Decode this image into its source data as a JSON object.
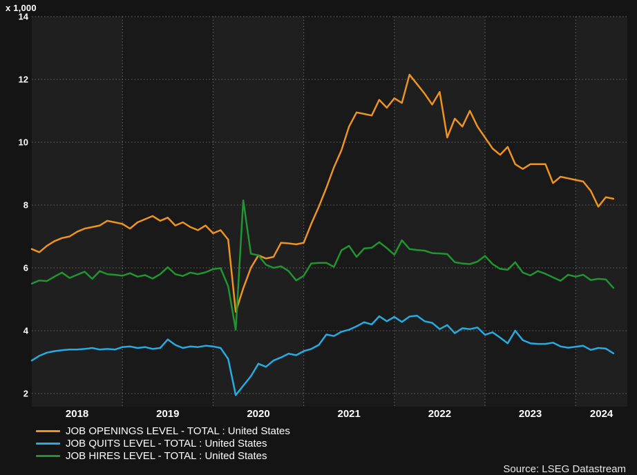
{
  "chart": {
    "scale_label": "x 1,000",
    "source": "Source: LSEG Datastream"
  },
  "legend": {
    "items": [
      {
        "label": "JOB OPENINGS LEVEL - TOTAL : United States",
        "color": "#ef9421"
      },
      {
        "label": "JOB QUITS LEVEL - TOTAL : United States",
        "color": "#27ace2"
      },
      {
        "label": "JOB HIRES LEVEL - TOTAL : United States",
        "color": "#1f9630"
      }
    ]
  },
  "chart_data": {
    "type": "line",
    "title": "",
    "xlabel": "",
    "ylabel": "x 1,000",
    "x_unit": "month",
    "x_start": "2018-01",
    "x_end": "2024-06",
    "x_tick_years": [
      "2018",
      "2019",
      "2020",
      "2021",
      "2022",
      "2023",
      "2024"
    ],
    "y_ticks": [
      2,
      4,
      6,
      8,
      10,
      12,
      14
    ],
    "ylim": [
      2,
      14
    ],
    "grid": "dotted",
    "grid_color": "#8a8a8a",
    "plot_band_light": "#1f1f1f",
    "plot_band_dark": "#191919",
    "legend_position": "bottom-left",
    "series": [
      {
        "name": "JOB OPENINGS LEVEL - TOTAL : United States",
        "color": "#ef9421",
        "values": [
          6.6,
          6.5,
          6.7,
          6.85,
          6.95,
          7.0,
          7.15,
          7.25,
          7.3,
          7.35,
          7.5,
          7.45,
          7.4,
          7.25,
          7.45,
          7.55,
          7.65,
          7.5,
          7.6,
          7.35,
          7.45,
          7.3,
          7.2,
          7.35,
          7.1,
          7.2,
          6.9,
          4.6,
          5.35,
          6.0,
          6.4,
          6.3,
          6.35,
          6.8,
          6.78,
          6.75,
          6.8,
          7.4,
          7.95,
          8.55,
          9.2,
          9.75,
          10.5,
          10.95,
          10.9,
          10.85,
          11.35,
          11.1,
          11.4,
          11.25,
          12.15,
          11.85,
          11.55,
          11.2,
          11.6,
          10.15,
          10.75,
          10.5,
          11.0,
          10.5,
          10.15,
          9.8,
          9.6,
          9.85,
          9.3,
          9.15,
          9.3,
          9.3,
          9.3,
          8.7,
          8.9,
          8.85,
          8.8,
          8.75,
          8.45,
          7.95,
          8.25,
          8.2
        ]
      },
      {
        "name": "JOB QUITS LEVEL - TOTAL : United States",
        "color": "#27ace2",
        "values": [
          3.05,
          3.2,
          3.3,
          3.35,
          3.38,
          3.4,
          3.4,
          3.42,
          3.45,
          3.4,
          3.42,
          3.4,
          3.48,
          3.5,
          3.45,
          3.48,
          3.42,
          3.45,
          3.72,
          3.55,
          3.45,
          3.5,
          3.48,
          3.52,
          3.5,
          3.45,
          3.1,
          1.95,
          2.25,
          2.55,
          2.95,
          2.85,
          3.05,
          3.15,
          3.27,
          3.22,
          3.35,
          3.42,
          3.55,
          3.88,
          3.83,
          3.97,
          4.03,
          4.14,
          4.27,
          4.2,
          4.46,
          4.3,
          4.44,
          4.28,
          4.45,
          4.48,
          4.3,
          4.25,
          4.05,
          4.18,
          3.92,
          4.08,
          4.05,
          4.1,
          3.87,
          3.95,
          3.78,
          3.6,
          4.0,
          3.7,
          3.6,
          3.58,
          3.58,
          3.62,
          3.5,
          3.46,
          3.49,
          3.52,
          3.39,
          3.45,
          3.43,
          3.28
        ]
      },
      {
        "name": "JOB HIRES LEVEL - TOTAL : United States",
        "color": "#1f9630",
        "values": [
          5.5,
          5.6,
          5.58,
          5.72,
          5.85,
          5.68,
          5.78,
          5.88,
          5.65,
          5.9,
          5.8,
          5.78,
          5.75,
          5.83,
          5.72,
          5.77,
          5.66,
          5.8,
          6.02,
          5.8,
          5.74,
          5.85,
          5.8,
          5.86,
          5.96,
          5.99,
          5.41,
          4.03,
          8.15,
          6.45,
          6.4,
          6.1,
          6.0,
          6.05,
          5.9,
          5.6,
          5.75,
          6.14,
          6.16,
          6.16,
          6.03,
          6.56,
          6.7,
          6.35,
          6.62,
          6.64,
          6.82,
          6.63,
          6.42,
          6.88,
          6.6,
          6.57,
          6.55,
          6.47,
          6.46,
          6.44,
          6.18,
          6.14,
          6.12,
          6.2,
          6.38,
          6.12,
          5.97,
          5.94,
          6.18,
          5.85,
          5.76,
          5.9,
          5.81,
          5.7,
          5.59,
          5.78,
          5.72,
          5.78,
          5.61,
          5.65,
          5.63,
          5.36
        ]
      }
    ]
  }
}
